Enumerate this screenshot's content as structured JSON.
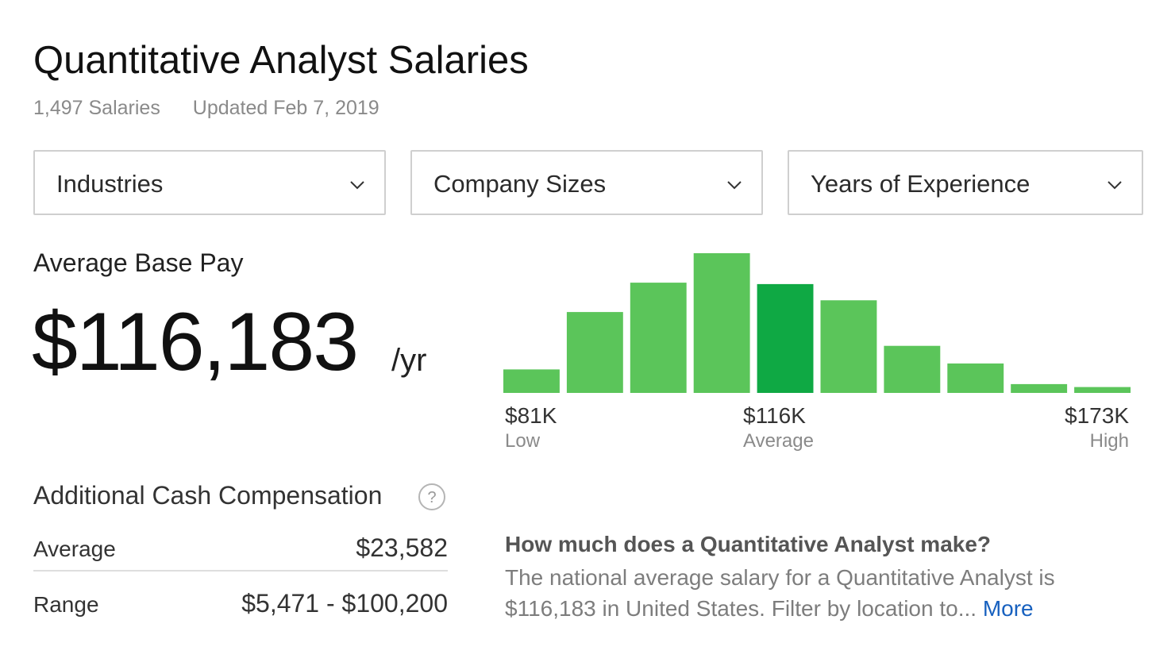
{
  "header": {
    "title": "Quantitative Analyst Salaries",
    "salaries_count": "1,497 Salaries",
    "updated": "Updated Feb 7, 2019"
  },
  "filters": [
    {
      "label": "Industries",
      "icon": "chevron-down-icon"
    },
    {
      "label": "Company Sizes",
      "icon": "chevron-down-icon"
    },
    {
      "label": "Years of Experience",
      "icon": "chevron-down-icon"
    }
  ],
  "base_pay": {
    "label": "Average Base Pay",
    "value": "$116,183",
    "unit": "/yr"
  },
  "histogram": {
    "low_value": "$81K",
    "low_label": "Low",
    "avg_value": "$116K",
    "avg_label": "Average",
    "high_value": "$173K",
    "high_label": "High"
  },
  "chart_data": {
    "type": "bar",
    "values": [
      16,
      55,
      75,
      95,
      74,
      63,
      32,
      20,
      6,
      4
    ],
    "highlight_index": 4,
    "colors": {
      "bar": "#5bc55a",
      "highlight": "#0fa944"
    },
    "ylim": [
      0,
      95
    ]
  },
  "additional_cash": {
    "title": "Additional Cash Compensation",
    "help_icon": "question-circle-icon",
    "average_label": "Average",
    "average_value": "$23,582",
    "range_label": "Range",
    "range_value": "$5,471 - $100,200"
  },
  "faq": {
    "question": "How much does a Quantitative Analyst make?",
    "answer": "The national average salary for a Quantitative Analyst is $116,183 in United States. Filter by location to...",
    "more_link": "More"
  }
}
